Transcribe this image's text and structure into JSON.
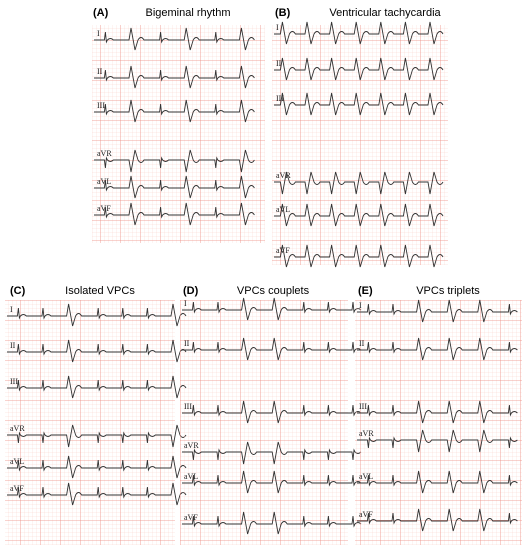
{
  "panels": [
    {
      "letter": "(A)",
      "title": "Bigeminal rhythm",
      "leads": [
        "I",
        "II",
        "III",
        "aVR",
        "aVL",
        "aVF"
      ]
    },
    {
      "letter": "(B)",
      "title": "Ventricular tachycardia",
      "leads": [
        "I",
        "II",
        "III",
        "aVR",
        "aVL",
        "aVF"
      ]
    },
    {
      "letter": "(C)",
      "title": "Isolated VPCs",
      "leads": [
        "I",
        "II",
        "III",
        "aVR",
        "aVL",
        "aVF"
      ]
    },
    {
      "letter": "(D)",
      "title": "VPCs couplets",
      "leads": [
        "I",
        "II",
        "III",
        "aVR",
        "aVL",
        "aVF"
      ]
    },
    {
      "letter": "(E)",
      "title": "VPCs triplets",
      "leads": [
        "I",
        "II",
        "III",
        "aVR",
        "aVL",
        "aVF"
      ]
    }
  ]
}
